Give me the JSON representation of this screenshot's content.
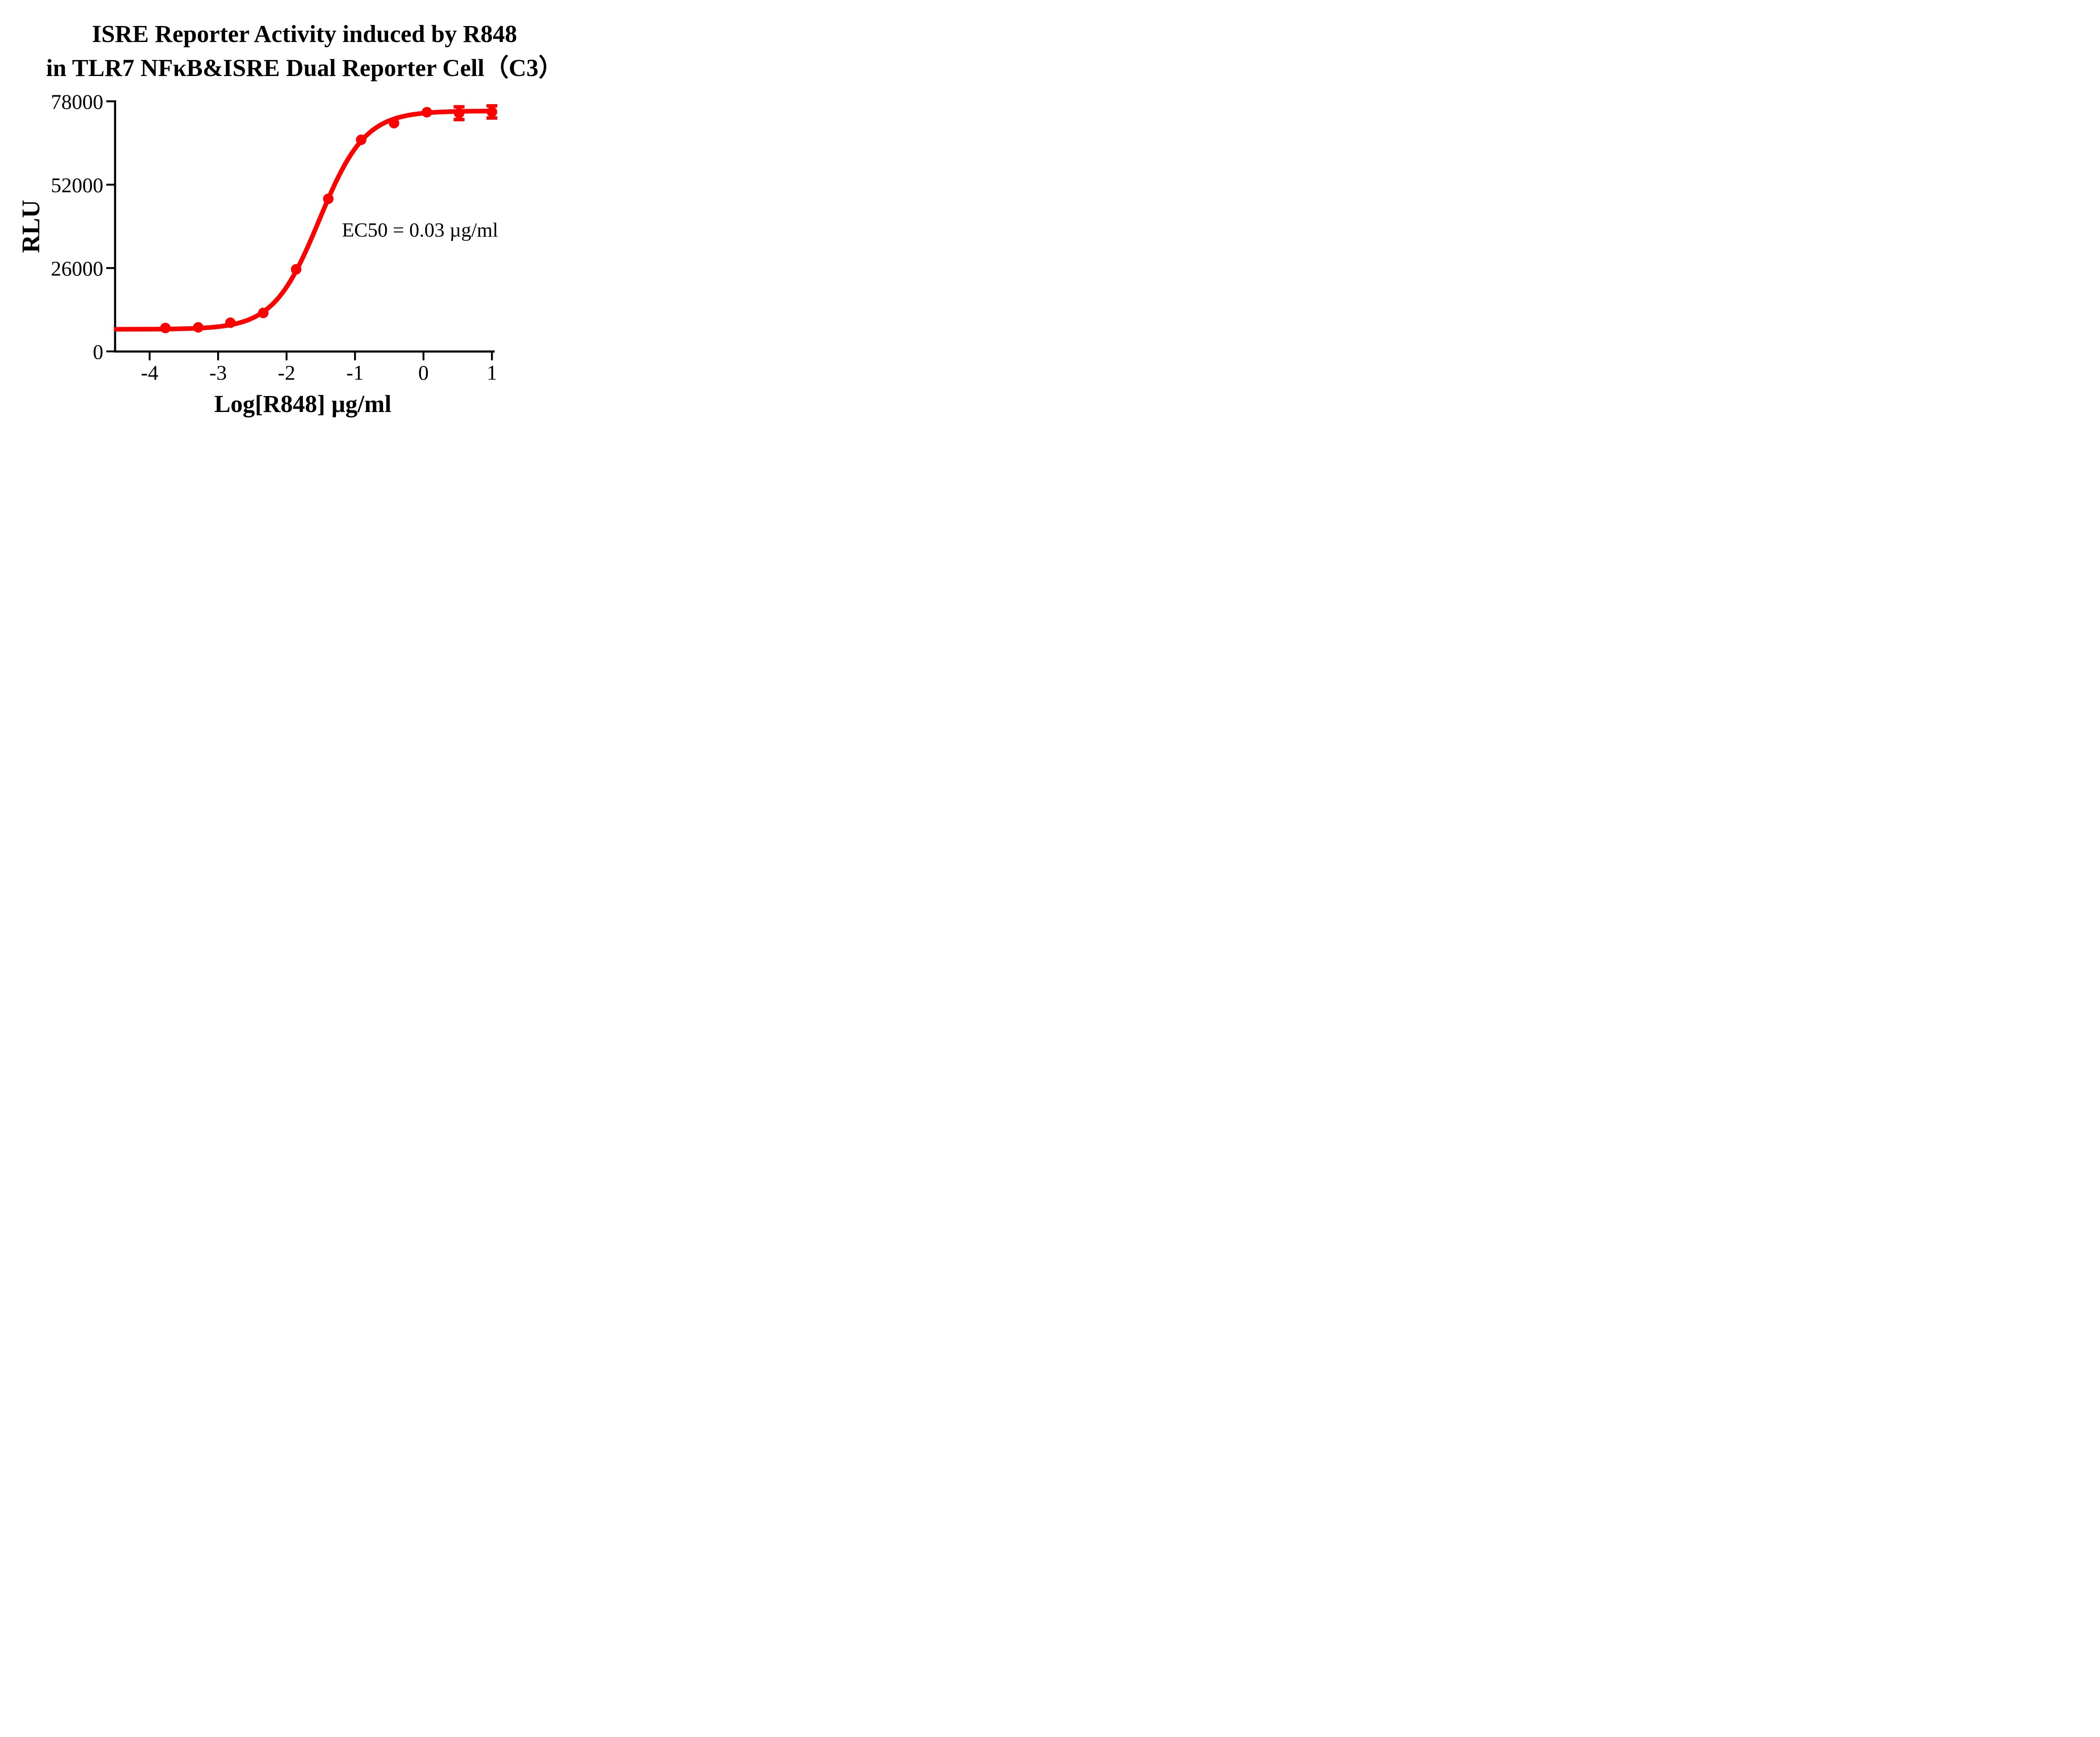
{
  "figure": {
    "title_line1": "ISRE Reporter Activity induced by R848",
    "title_line2": "in TLR7 NFκB&ISRE Dual Reporter Cell（C3）",
    "background": "#ffffff"
  },
  "chart_data": {
    "type": "scatter",
    "title": "ISRE Reporter Activity induced by R848 in TLR7 NFκB&ISRE Dual Reporter Cell（C3）",
    "xlabel": "Log[R848] µg/ml",
    "ylabel": "RLU",
    "ec50_label": "EC50 = 0.03 µg/ml",
    "x_ticks": [
      -4,
      -3,
      -2,
      -1,
      0,
      1
    ],
    "y_ticks": [
      0,
      26000,
      52000,
      78000
    ],
    "xlim": [
      -4.52,
      1.04
    ],
    "ylim": [
      0,
      78000
    ],
    "grid": false,
    "legend": "none",
    "colors": {
      "series": "#ff0000",
      "axis": "#000000",
      "text": "#000000"
    },
    "points": [
      {
        "x": -3.77,
        "y": 7300,
        "err": 0
      },
      {
        "x": -3.29,
        "y": 7500,
        "err": 0
      },
      {
        "x": -2.82,
        "y": 8950,
        "err": 0
      },
      {
        "x": -2.34,
        "y": 12000,
        "err": 0
      },
      {
        "x": -1.86,
        "y": 25600,
        "err": 0
      },
      {
        "x": -1.39,
        "y": 47600,
        "err": 0
      },
      {
        "x": -0.91,
        "y": 66000,
        "err": 0
      },
      {
        "x": -0.43,
        "y": 71200,
        "err": 0
      },
      {
        "x": 0.05,
        "y": 74600,
        "err": 0
      },
      {
        "x": 0.52,
        "y": 74300,
        "err": 2000
      },
      {
        "x": 1.0,
        "y": 74700,
        "err": 1900
      }
    ],
    "fit": {
      "model": "4PL",
      "bottom": 6900,
      "top": 75000,
      "log_ec50": -1.523,
      "hill": 1.3,
      "curve_x_start": -4.49,
      "curve_x_end": 1.0
    }
  }
}
